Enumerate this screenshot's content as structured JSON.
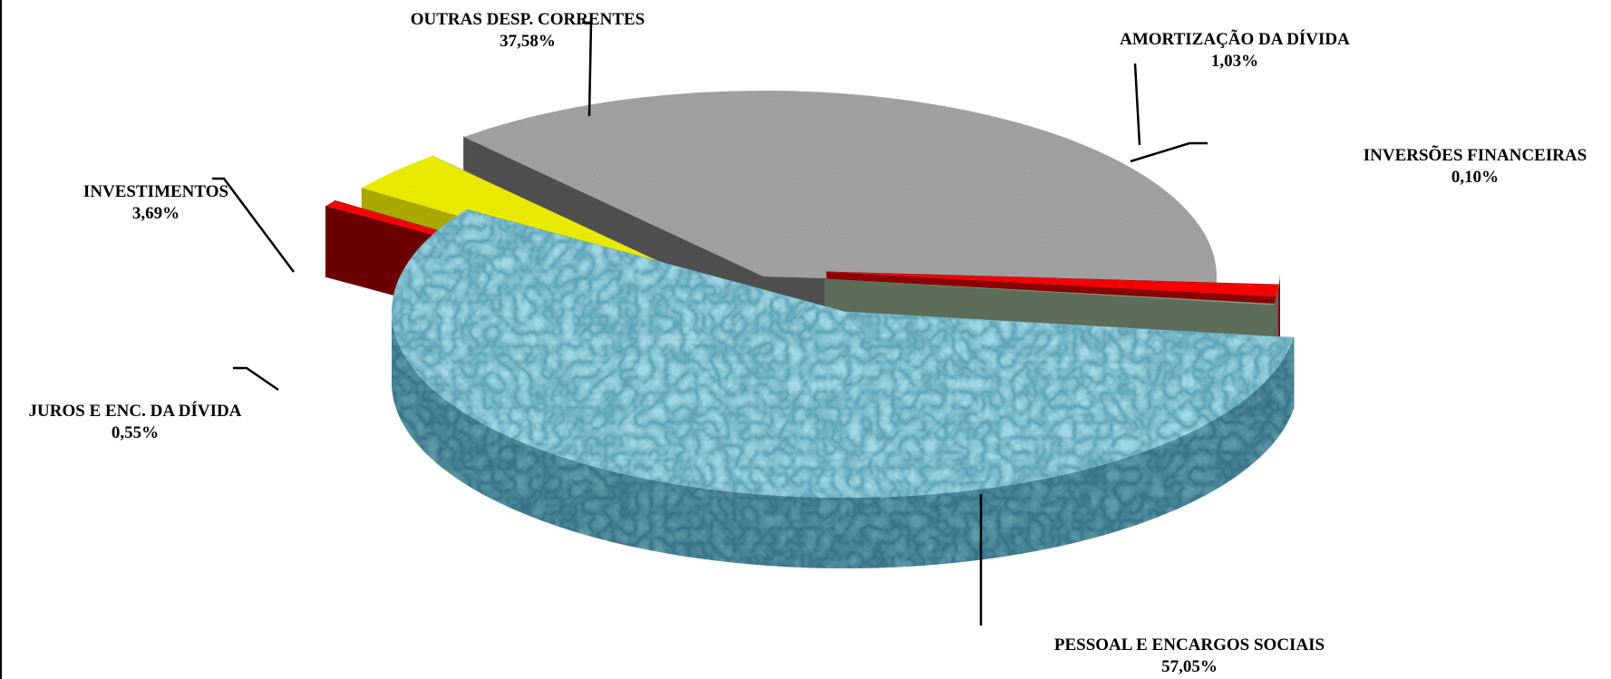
{
  "chart_data": {
    "type": "pie",
    "title": "",
    "slices": [
      {
        "label": "PESSOAL E ENCARGOS SOCIAIS",
        "value": 57.05,
        "value_label": "57,05%",
        "color": "#9fd8e4",
        "side_color": "#5f9aaa"
      },
      {
        "label": "JUROS E ENC. DA DÍVIDA",
        "value": 0.55,
        "value_label": "0,55%",
        "color": "#ff0000",
        "side_color": "#6b0000"
      },
      {
        "label": "INVESTIMENTOS",
        "value": 3.69,
        "value_label": "3,69%",
        "color": "#f2f200",
        "side_color": "#a8a800"
      },
      {
        "label": "OUTRAS DESP. CORRENTES",
        "value": 37.58,
        "value_label": "37,58%",
        "color": "#a6a6a6",
        "side_color": "#4f4f4f"
      },
      {
        "label": "AMORTIZAÇÃO DA DÍVIDA",
        "value": 1.03,
        "value_label": "1,03%",
        "color": "#ff0000",
        "side_color": "#8b0000"
      },
      {
        "label": "INVERSÕES FINANCEIRAS",
        "value": 0.1,
        "value_label": "0,10%",
        "color": "#8fa08a",
        "side_color": "#5d6d59"
      }
    ],
    "style": "3d-exploded",
    "legend": "none"
  }
}
